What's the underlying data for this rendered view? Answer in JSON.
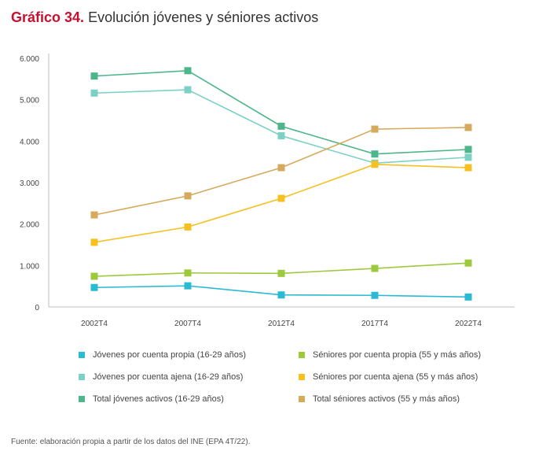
{
  "header": {
    "title_prefix": "Gráfico 34.",
    "title_text": "Evolución jóvenes y séniores activos"
  },
  "footer": {
    "source": "Fuente: elaboración propia a partir de los datos del INE (EPA 4T/22)."
  },
  "chart_data": {
    "type": "line",
    "categories": [
      "2002T4",
      "2007T4",
      "2012T4",
      "2017T4",
      "2022T4"
    ],
    "ylim": [
      0,
      6000
    ],
    "yticks": [
      0,
      1000,
      2000,
      3000,
      4000,
      5000,
      6000
    ],
    "ytick_labels": [
      "0",
      "1.000",
      "2.000",
      "3.000",
      "4.000",
      "5.000",
      "6.000"
    ],
    "grid": false,
    "legend_position": "bottom",
    "series": [
      {
        "name": "Jóvenes por cuenta propia (16-29 años)",
        "color": "#2bbad3",
        "values": [
          470,
          510,
          290,
          280,
          240
        ]
      },
      {
        "name": "Séniores por cuenta propia (55 y más años)",
        "color": "#9dc93d",
        "values": [
          740,
          820,
          810,
          930,
          1060
        ]
      },
      {
        "name": "Jóvenes por cuenta ajena (16-29 años)",
        "color": "#7dd0c4",
        "values": [
          5160,
          5240,
          4130,
          3470,
          3610
        ]
      },
      {
        "name": "Séniores por cuenta ajena (55 y más años)",
        "color": "#f5c020",
        "values": [
          1560,
          1930,
          2620,
          3440,
          3360
        ]
      },
      {
        "name": "Total jóvenes activos (16-29 años)",
        "color": "#4db68a",
        "values": [
          5570,
          5700,
          4360,
          3690,
          3800
        ]
      },
      {
        "name": "Total séniores activos (55 y más años)",
        "color": "#d6aa5c",
        "values": [
          2220,
          2680,
          3360,
          4290,
          4330
        ]
      }
    ]
  }
}
